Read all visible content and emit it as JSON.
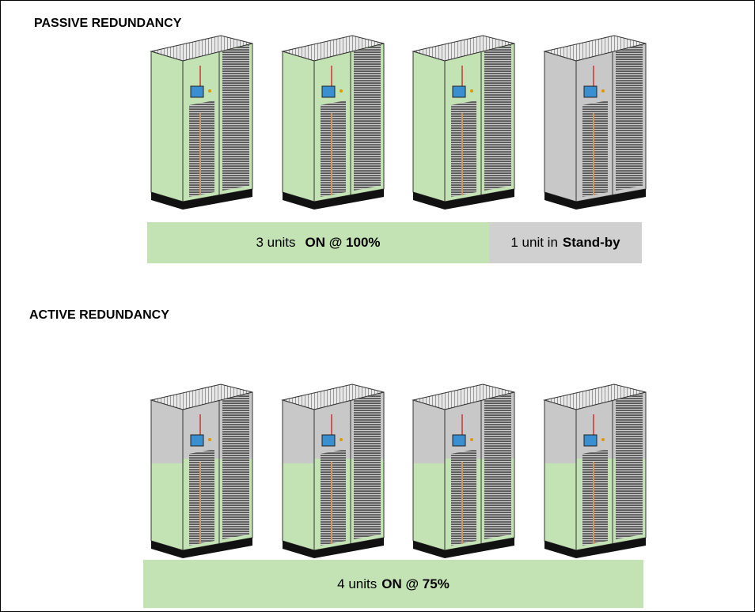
{
  "passive": {
    "title": "PASSIVE REDUNDANCY",
    "on_bar": {
      "count": "3 units",
      "state": "ON @ 100%"
    },
    "standby_bar": {
      "count": "1 unit in",
      "state": "Stand-by"
    }
  },
  "active": {
    "title": "ACTIVE REDUNDANCY",
    "on_bar": {
      "count": "4 units",
      "state": "ON @ 75%"
    }
  }
}
